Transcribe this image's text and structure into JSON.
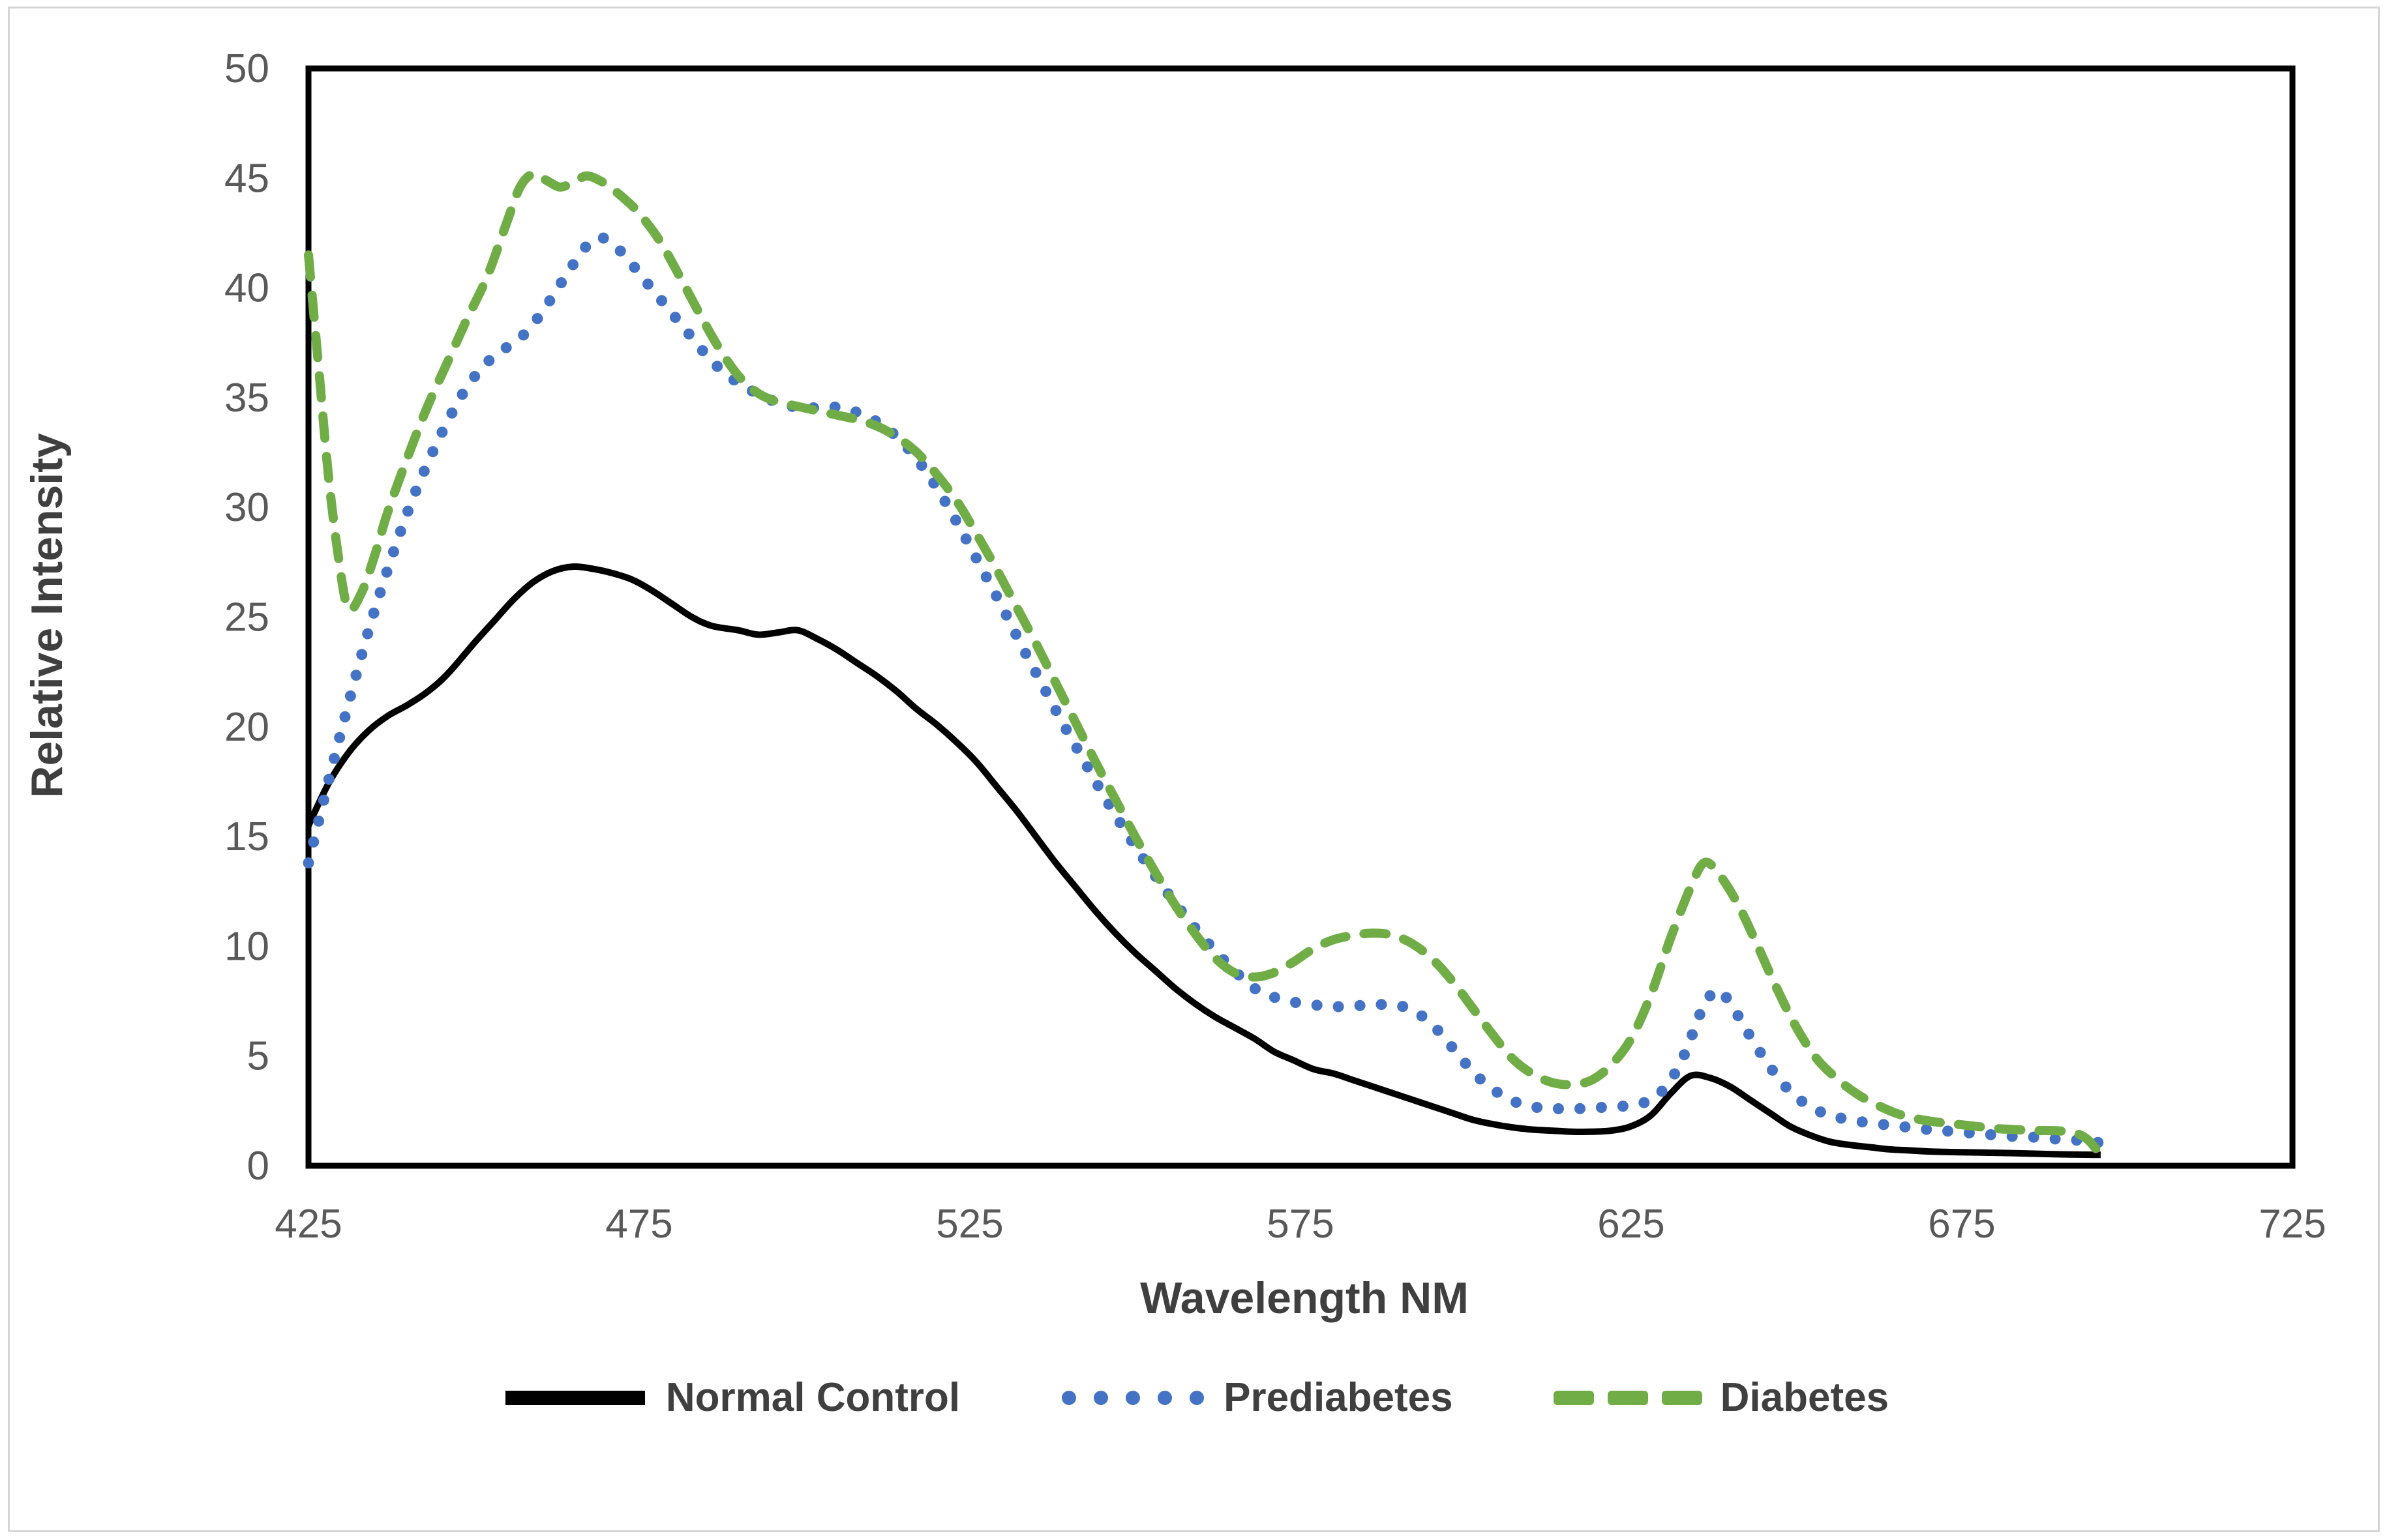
{
  "figure": {
    "background_color": "#ffffff",
    "frame_border_color": "#d6d6d6",
    "axis_line_color": "#000000",
    "tick_text_color": "#595959",
    "title_text_color": "#3f3f3f"
  },
  "chart_data": {
    "type": "line",
    "title": "",
    "xlabel": "Wavelength NM",
    "ylabel": "Relative Intensity",
    "xlim": [
      425,
      725
    ],
    "ylim": [
      0,
      50
    ],
    "x_ticks": [
      425,
      475,
      525,
      575,
      625,
      675,
      725
    ],
    "y_ticks": [
      0,
      5,
      10,
      15,
      20,
      25,
      30,
      35,
      40,
      45,
      50
    ],
    "grid": false,
    "legend_position": "bottom",
    "series": [
      {
        "name": "Normal Control",
        "color": "#000000",
        "style": "solid",
        "points": [
          [
            425,
            15.5
          ],
          [
            428,
            17.4
          ],
          [
            431,
            18.8
          ],
          [
            434,
            19.8
          ],
          [
            437,
            20.5
          ],
          [
            440,
            21.0
          ],
          [
            443,
            21.6
          ],
          [
            446,
            22.4
          ],
          [
            450,
            23.8
          ],
          [
            453,
            24.8
          ],
          [
            456,
            25.8
          ],
          [
            459,
            26.6
          ],
          [
            462,
            27.1
          ],
          [
            465,
            27.3
          ],
          [
            468,
            27.2
          ],
          [
            471,
            27.0
          ],
          [
            474,
            26.7
          ],
          [
            477,
            26.2
          ],
          [
            480,
            25.6
          ],
          [
            483,
            25.0
          ],
          [
            486,
            24.6
          ],
          [
            490,
            24.4
          ],
          [
            493,
            24.2
          ],
          [
            496,
            24.3
          ],
          [
            499,
            24.4
          ],
          [
            502,
            24.0
          ],
          [
            505,
            23.5
          ],
          [
            508,
            22.9
          ],
          [
            511,
            22.3
          ],
          [
            514,
            21.6
          ],
          [
            517,
            20.8
          ],
          [
            520,
            20.1
          ],
          [
            523,
            19.3
          ],
          [
            526,
            18.4
          ],
          [
            529,
            17.3
          ],
          [
            532,
            16.2
          ],
          [
            535,
            15.0
          ],
          [
            538,
            13.8
          ],
          [
            541,
            12.7
          ],
          [
            544,
            11.6
          ],
          [
            547,
            10.6
          ],
          [
            550,
            9.7
          ],
          [
            553,
            8.9
          ],
          [
            556,
            8.1
          ],
          [
            559,
            7.4
          ],
          [
            562,
            6.8
          ],
          [
            565,
            6.3
          ],
          [
            568,
            5.8
          ],
          [
            571,
            5.2
          ],
          [
            574,
            4.8
          ],
          [
            577,
            4.4
          ],
          [
            580,
            4.2
          ],
          [
            583,
            3.9
          ],
          [
            586,
            3.6
          ],
          [
            589,
            3.3
          ],
          [
            592,
            3.0
          ],
          [
            595,
            2.7
          ],
          [
            598,
            2.4
          ],
          [
            601,
            2.1
          ],
          [
            604,
            1.9
          ],
          [
            607,
            1.75
          ],
          [
            610,
            1.65
          ],
          [
            613,
            1.6
          ],
          [
            616,
            1.55
          ],
          [
            619,
            1.55
          ],
          [
            622,
            1.6
          ],
          [
            625,
            1.8
          ],
          [
            628,
            2.3
          ],
          [
            631,
            3.3
          ],
          [
            634,
            4.1
          ],
          [
            637,
            4.0
          ],
          [
            640,
            3.6
          ],
          [
            643,
            3.0
          ],
          [
            646,
            2.4
          ],
          [
            649,
            1.8
          ],
          [
            652,
            1.4
          ],
          [
            655,
            1.1
          ],
          [
            658,
            0.95
          ],
          [
            661,
            0.85
          ],
          [
            664,
            0.75
          ],
          [
            667,
            0.7
          ],
          [
            670,
            0.65
          ],
          [
            674,
            0.62
          ],
          [
            678,
            0.6
          ],
          [
            682,
            0.58
          ],
          [
            686,
            0.55
          ],
          [
            690,
            0.52
          ],
          [
            696,
            0.5
          ]
        ]
      },
      {
        "name": "Prediabetes",
        "color": "#4472C4",
        "style": "dotted",
        "points": [
          [
            425,
            13.8
          ],
          [
            428,
            17.5
          ],
          [
            431,
            21.0
          ],
          [
            434,
            24.3
          ],
          [
            437,
            27.2
          ],
          [
            440,
            29.8
          ],
          [
            443,
            32.0
          ],
          [
            446,
            33.9
          ],
          [
            449,
            35.5
          ],
          [
            452,
            36.6
          ],
          [
            455,
            37.3
          ],
          [
            458,
            38.0
          ],
          [
            461,
            39.2
          ],
          [
            464,
            40.6
          ],
          [
            467,
            41.9
          ],
          [
            469,
            42.3
          ],
          [
            471,
            42.0
          ],
          [
            473,
            41.4
          ],
          [
            476,
            40.3
          ],
          [
            479,
            39.2
          ],
          [
            482,
            38.1
          ],
          [
            485,
            37.0
          ],
          [
            488,
            36.1
          ],
          [
            491,
            35.5
          ],
          [
            494,
            35.0
          ],
          [
            497,
            34.7
          ],
          [
            500,
            34.5
          ],
          [
            503,
            34.6
          ],
          [
            506,
            34.5
          ],
          [
            509,
            34.2
          ],
          [
            512,
            33.7
          ],
          [
            515,
            32.9
          ],
          [
            518,
            31.8
          ],
          [
            521,
            30.4
          ],
          [
            524,
            28.8
          ],
          [
            527,
            27.1
          ],
          [
            530,
            25.4
          ],
          [
            533,
            23.6
          ],
          [
            536,
            21.9
          ],
          [
            539,
            20.2
          ],
          [
            542,
            18.6
          ],
          [
            545,
            17.0
          ],
          [
            548,
            15.5
          ],
          [
            551,
            14.1
          ],
          [
            554,
            12.8
          ],
          [
            557,
            11.6
          ],
          [
            560,
            10.5
          ],
          [
            563,
            9.5
          ],
          [
            566,
            8.6
          ],
          [
            569,
            7.9
          ],
          [
            572,
            7.6
          ],
          [
            575,
            7.4
          ],
          [
            578,
            7.3
          ],
          [
            581,
            7.25
          ],
          [
            584,
            7.3
          ],
          [
            587,
            7.35
          ],
          [
            590,
            7.3
          ],
          [
            593,
            6.9
          ],
          [
            596,
            6.1
          ],
          [
            599,
            5.0
          ],
          [
            602,
            4.0
          ],
          [
            605,
            3.3
          ],
          [
            608,
            2.85
          ],
          [
            611,
            2.65
          ],
          [
            614,
            2.6
          ],
          [
            617,
            2.6
          ],
          [
            620,
            2.65
          ],
          [
            623,
            2.7
          ],
          [
            626,
            2.8
          ],
          [
            629,
            3.2
          ],
          [
            632,
            4.4
          ],
          [
            634,
            5.8
          ],
          [
            636,
            7.3
          ],
          [
            638,
            8.0
          ],
          [
            640,
            7.4
          ],
          [
            643,
            5.9
          ],
          [
            646,
            4.5
          ],
          [
            649,
            3.4
          ],
          [
            652,
            2.7
          ],
          [
            655,
            2.3
          ],
          [
            658,
            2.1
          ],
          [
            661,
            1.95
          ],
          [
            664,
            1.85
          ],
          [
            667,
            1.75
          ],
          [
            670,
            1.65
          ],
          [
            674,
            1.55
          ],
          [
            678,
            1.45
          ],
          [
            682,
            1.35
          ],
          [
            686,
            1.3
          ],
          [
            690,
            1.2
          ],
          [
            693,
            1.15
          ],
          [
            696,
            1.05
          ]
        ]
      },
      {
        "name": "Diabetes",
        "color": "#70AD47",
        "style": "dashed",
        "points": [
          [
            425,
            41.5
          ],
          [
            426.5,
            36.5
          ],
          [
            428,
            31.5
          ],
          [
            429.5,
            27.8
          ],
          [
            431,
            25.4
          ],
          [
            433,
            26.1
          ],
          [
            435,
            27.8
          ],
          [
            437,
            29.8
          ],
          [
            440,
            32.3
          ],
          [
            443,
            34.6
          ],
          [
            446,
            36.6
          ],
          [
            449,
            38.6
          ],
          [
            452,
            40.5
          ],
          [
            455,
            43.0
          ],
          [
            457,
            44.6
          ],
          [
            459,
            45.2
          ],
          [
            461,
            44.9
          ],
          [
            463,
            44.6
          ],
          [
            465,
            44.8
          ],
          [
            467,
            45.1
          ],
          [
            469,
            44.9
          ],
          [
            471,
            44.5
          ],
          [
            473,
            44.0
          ],
          [
            475,
            43.4
          ],
          [
            478,
            42.2
          ],
          [
            481,
            40.6
          ],
          [
            484,
            38.9
          ],
          [
            487,
            37.3
          ],
          [
            490,
            36.0
          ],
          [
            493,
            35.2
          ],
          [
            496,
            34.8
          ],
          [
            499,
            34.6
          ],
          [
            502,
            34.4
          ],
          [
            505,
            34.2
          ],
          [
            508,
            34.0
          ],
          [
            511,
            33.7
          ],
          [
            514,
            33.2
          ],
          [
            517,
            32.5
          ],
          [
            520,
            31.5
          ],
          [
            523,
            30.3
          ],
          [
            526,
            28.8
          ],
          [
            529,
            27.2
          ],
          [
            532,
            25.5
          ],
          [
            535,
            23.8
          ],
          [
            538,
            22.0
          ],
          [
            541,
            20.2
          ],
          [
            544,
            18.4
          ],
          [
            547,
            16.7
          ],
          [
            550,
            15.0
          ],
          [
            553,
            13.4
          ],
          [
            556,
            11.9
          ],
          [
            559,
            10.6
          ],
          [
            562,
            9.5
          ],
          [
            565,
            8.8
          ],
          [
            568,
            8.6
          ],
          [
            571,
            8.8
          ],
          [
            574,
            9.3
          ],
          [
            577,
            9.9
          ],
          [
            580,
            10.3
          ],
          [
            583,
            10.5
          ],
          [
            586,
            10.6
          ],
          [
            589,
            10.5
          ],
          [
            592,
            10.1
          ],
          [
            595,
            9.4
          ],
          [
            598,
            8.4
          ],
          [
            601,
            7.2
          ],
          [
            604,
            6.0
          ],
          [
            607,
            4.9
          ],
          [
            610,
            4.2
          ],
          [
            613,
            3.8
          ],
          [
            616,
            3.7
          ],
          [
            619,
            3.9
          ],
          [
            622,
            4.6
          ],
          [
            625,
            5.8
          ],
          [
            628,
            7.8
          ],
          [
            631,
            10.4
          ],
          [
            634,
            12.7
          ],
          [
            636,
            13.8
          ],
          [
            638,
            13.4
          ],
          [
            641,
            12.0
          ],
          [
            644,
            10.1
          ],
          [
            647,
            8.1
          ],
          [
            650,
            6.3
          ],
          [
            653,
            4.9
          ],
          [
            656,
            4.0
          ],
          [
            659,
            3.3
          ],
          [
            662,
            2.8
          ],
          [
            665,
            2.4
          ],
          [
            668,
            2.15
          ],
          [
            671,
            2.0
          ],
          [
            674,
            1.9
          ],
          [
            677,
            1.8
          ],
          [
            680,
            1.7
          ],
          [
            683,
            1.65
          ],
          [
            686,
            1.6
          ],
          [
            689,
            1.6
          ],
          [
            692,
            1.5
          ],
          [
            694,
            1.2
          ],
          [
            696,
            0.5
          ]
        ]
      }
    ]
  }
}
